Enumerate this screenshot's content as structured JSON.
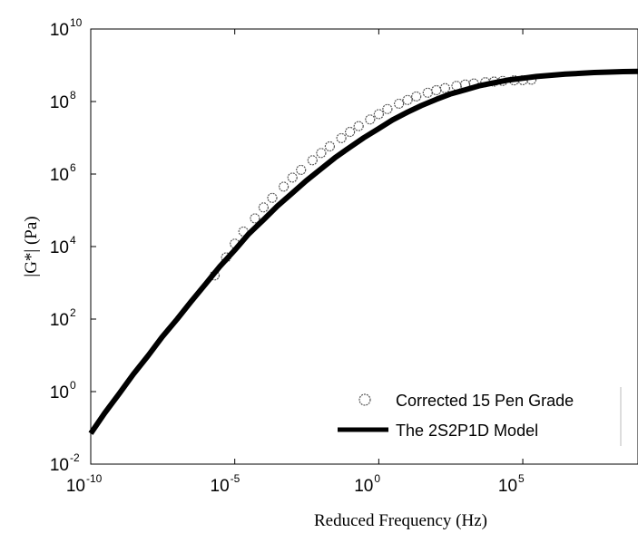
{
  "chart_data": {
    "type": "scatter",
    "xlabel": "Reduced Frequency (Hz)",
    "ylabel": "|G*| (Pa)",
    "x_scale": "log",
    "y_scale": "log",
    "xlim": [
      1e-10,
      1000000000.0
    ],
    "ylim": [
      0.01,
      10000000000.0
    ],
    "x_ticks": [
      {
        "base": "10",
        "exp": "-10",
        "value": 1e-10
      },
      {
        "base": "10",
        "exp": "-5",
        "value": 1e-05
      },
      {
        "base": "10",
        "exp": "0",
        "value": 1
      },
      {
        "base": "10",
        "exp": "5",
        "value": 100000.0
      }
    ],
    "y_ticks": [
      {
        "base": "10",
        "exp": "-2",
        "value": 0.01
      },
      {
        "base": "10",
        "exp": "0",
        "value": 1
      },
      {
        "base": "10",
        "exp": "2",
        "value": 100.0
      },
      {
        "base": "10",
        "exp": "4",
        "value": 10000.0
      },
      {
        "base": "10",
        "exp": "6",
        "value": 1000000.0
      },
      {
        "base": "10",
        "exp": "8",
        "value": 100000000.0
      },
      {
        "base": "10",
        "exp": "10",
        "value": 10000000000.0
      }
    ],
    "grid": false,
    "legend_position": "bottom-right",
    "series": [
      {
        "name": "Corrected 15 Pen Grade",
        "style": "open-circle-markers",
        "color": "#555555",
        "x": [
          2e-06,
          5e-06,
          1e-05,
          2e-05,
          5e-05,
          0.0001,
          0.0002,
          0.0005,
          0.001,
          0.002,
          0.005,
          0.01,
          0.02,
          0.05,
          0.1,
          0.2,
          0.5,
          1,
          2,
          5,
          10,
          20,
          50,
          100,
          200,
          500,
          1000,
          2000,
          5000,
          10000.0,
          20000.0,
          50000.0,
          100000.0,
          200000.0
        ],
        "y": [
          1600.0,
          5000.0,
          12000.0,
          26000.0,
          60000.0,
          120000.0,
          220000.0,
          450000.0,
          800000.0,
          1300000.0,
          2400000.0,
          3800000.0,
          5800000.0,
          9800000.0,
          14500000.0,
          21000000.0,
          32000000.0,
          45000000.0,
          62000000.0,
          87000000.0,
          110000000.0,
          138000000.0,
          175000000.0,
          205000000.0,
          235000000.0,
          270000000.0,
          295000000.0,
          315000000.0,
          340000000.0,
          355000000.0,
          370000000.0,
          385000000.0,
          390000000.0,
          400000000.0
        ]
      },
      {
        "name": "The 2S2P1D Model",
        "style": "solid-line",
        "color": "#000000",
        "x": [
          1e-10,
          3e-10,
          1e-09,
          3e-09,
          1e-08,
          3e-08,
          1e-07,
          3e-07,
          1e-06,
          3e-06,
          1e-05,
          3e-05,
          0.0001,
          0.0003,
          0.001,
          0.003,
          0.01,
          0.03,
          0.1,
          0.3,
          1,
          3,
          10,
          30,
          100,
          300,
          1000,
          3000,
          10000.0,
          30000.0,
          100000.0,
          300000.0,
          1000000.0,
          3000000.0,
          10000000.0,
          30000000.0,
          100000000.0,
          300000000.0,
          1000000000.0
        ],
        "y": [
          0.07,
          0.25,
          0.9,
          3,
          10,
          32,
          100,
          300,
          950,
          2800,
          8000,
          22000.0,
          55000.0,
          130000.0,
          300000.0,
          650000.0,
          1400000.0,
          2800000.0,
          5500000.0,
          10000000.0,
          18000000.0,
          31000000.0,
          51000000.0,
          77000000.0,
          115000000.0,
          160000000.0,
          210000000.0,
          270000000.0,
          330000000.0,
          390000000.0,
          440000000.0,
          490000000.0,
          530000000.0,
          570000000.0,
          600000000.0,
          630000000.0,
          650000000.0,
          670000000.0,
          680000000.0
        ]
      }
    ]
  }
}
